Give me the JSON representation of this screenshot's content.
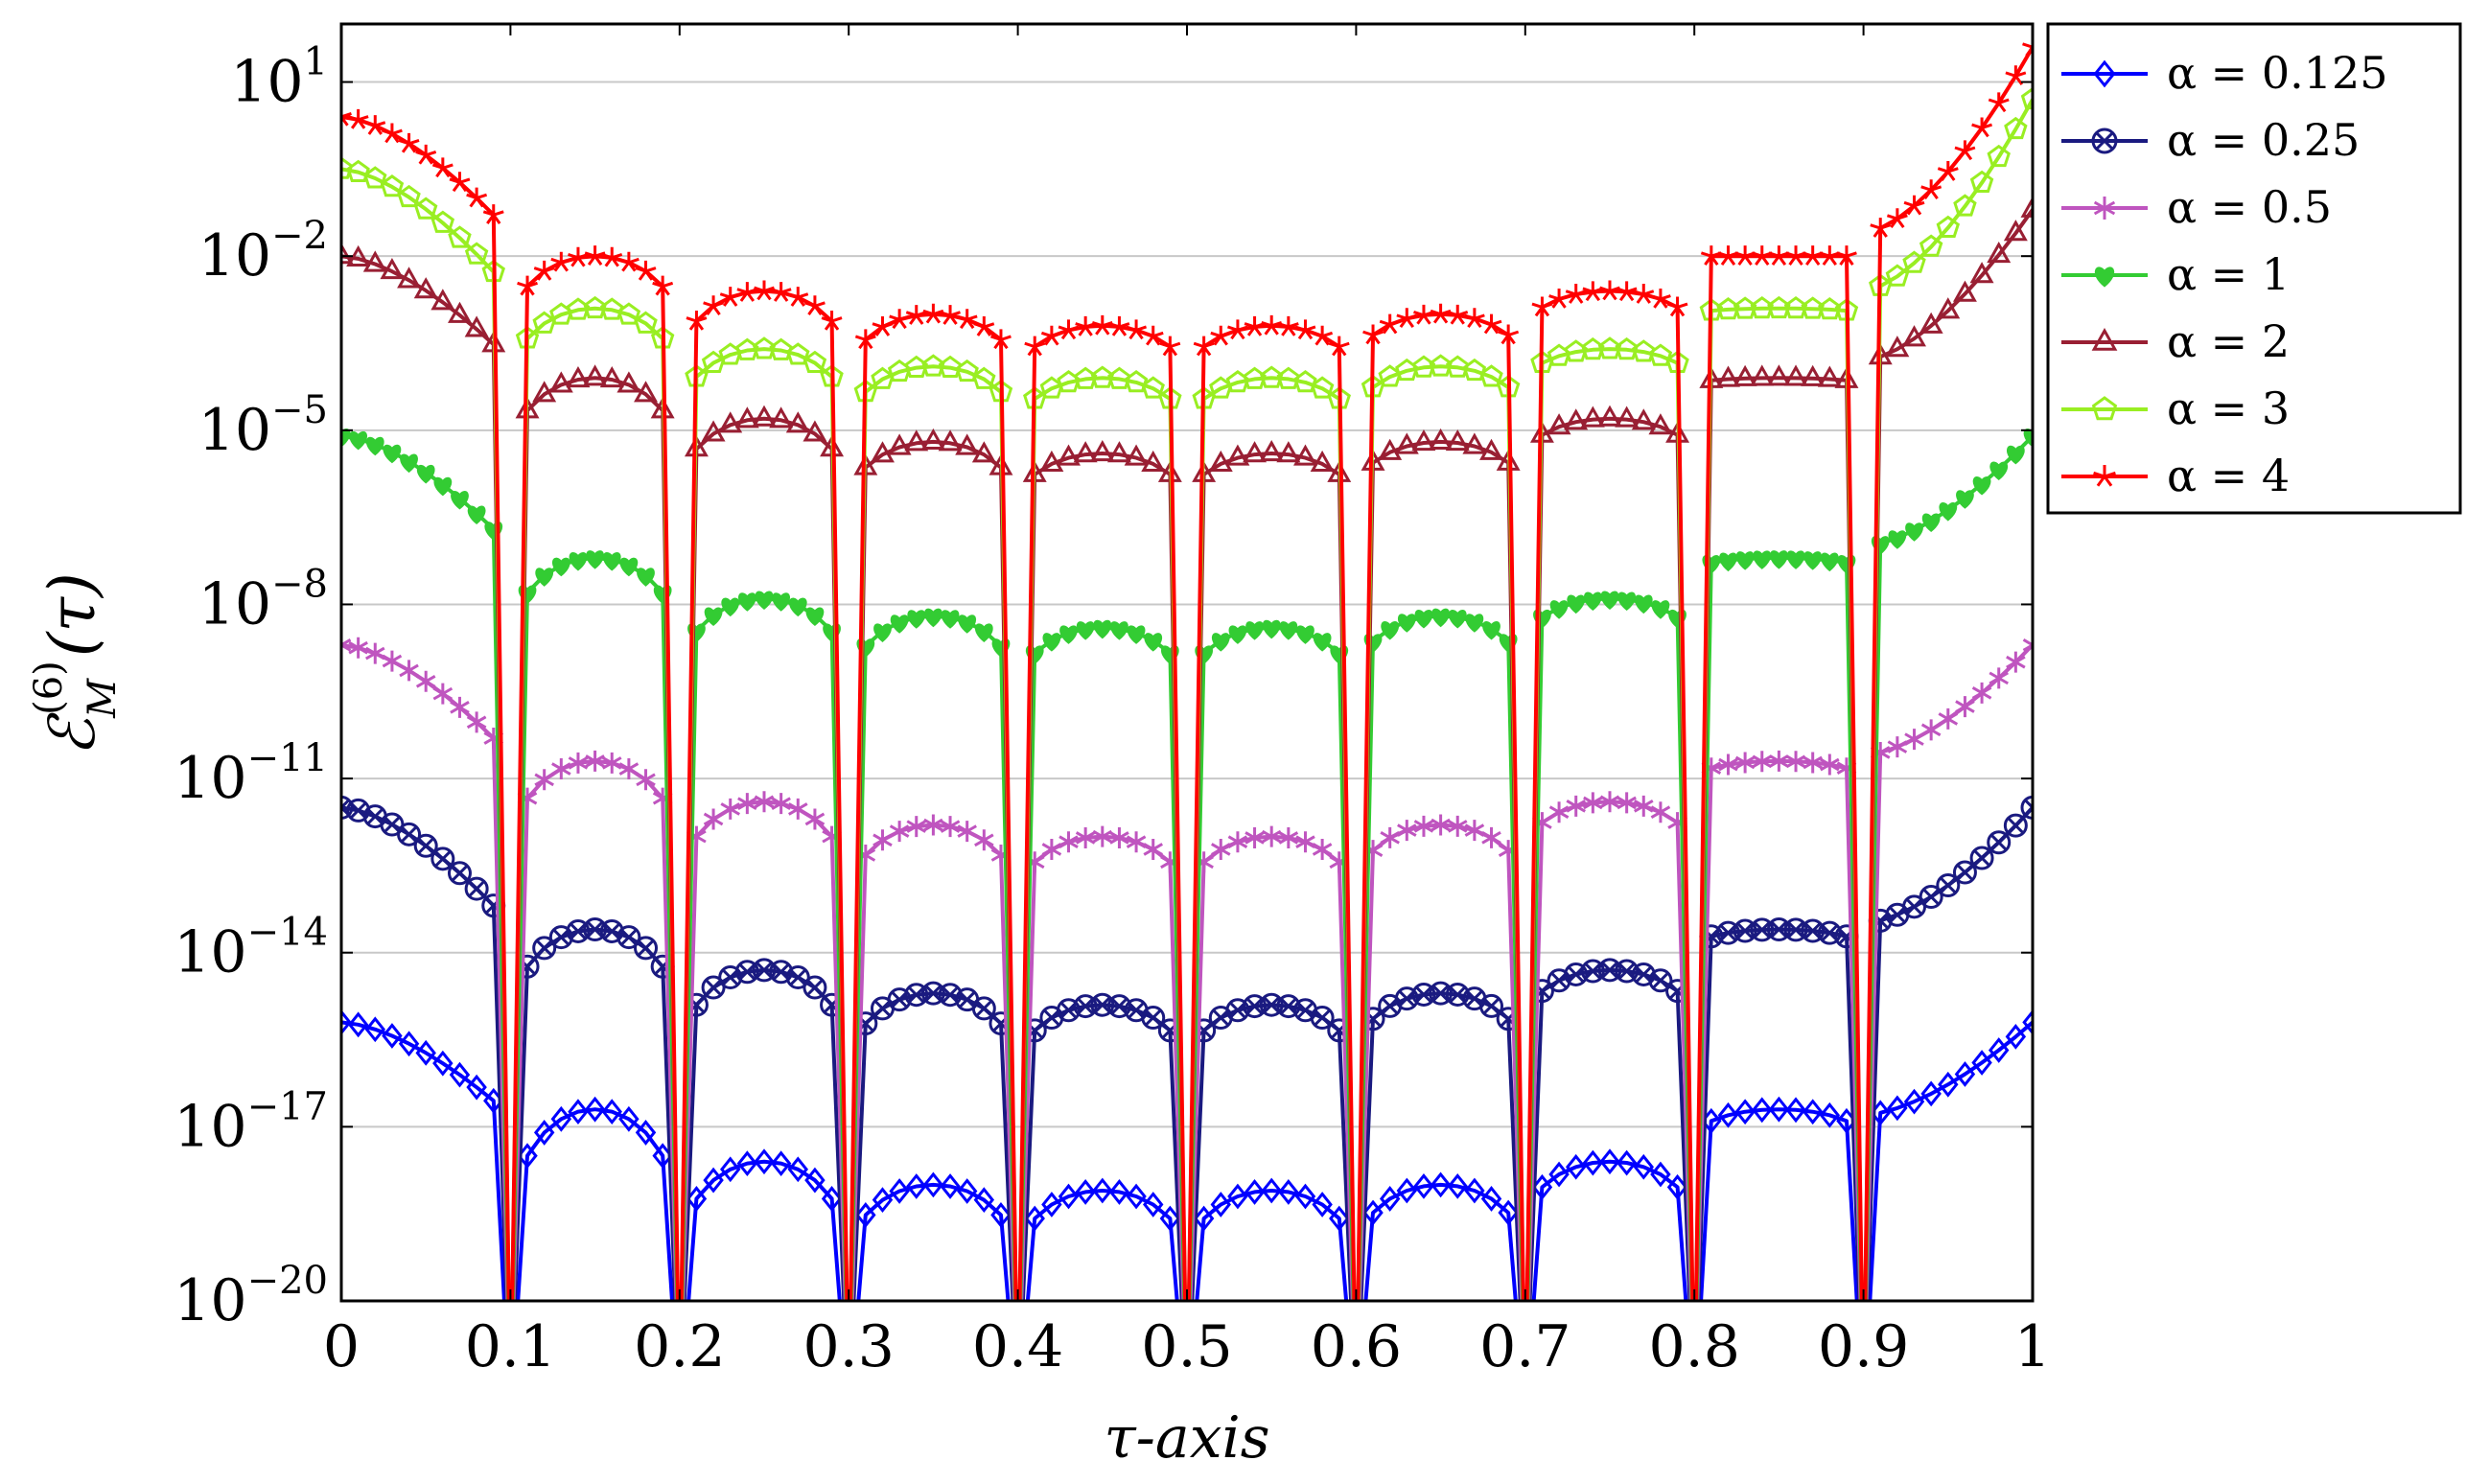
{
  "chart_data": {
    "type": "line",
    "xlabel": "τ-axis",
    "ylabel": "ℰ_M^(6)(τ)",
    "ylabel_parts": {
      "base": "ℰ",
      "sub": "M",
      "sup": "(6)",
      "arg": "(τ)"
    },
    "xlim": [
      0,
      1
    ],
    "ylim_exp": [
      -20,
      2
    ],
    "yscale": "log",
    "grid": "horizontal major",
    "legend_position": "outside top-right",
    "x_ticks": [
      "0",
      "0.1",
      "0.2",
      "0.3",
      "0.4",
      "0.5",
      "0.6",
      "0.7",
      "0.8",
      "0.9",
      "1"
    ],
    "y_ticks": [
      {
        "base": "10",
        "exp": "−20"
      },
      {
        "base": "10",
        "exp": "−17"
      },
      {
        "base": "10",
        "exp": "−14"
      },
      {
        "base": "10",
        "exp": "−11"
      },
      {
        "base": "10",
        "exp": "−8"
      },
      {
        "base": "10",
        "exp": "−5"
      },
      {
        "base": "10",
        "exp": "−2"
      },
      {
        "base": "10",
        "exp": "1"
      }
    ],
    "x": [
      0,
      0.1,
      0.2,
      0.3,
      0.4,
      0.5,
      0.6,
      0.7,
      0.8,
      0.9,
      1
    ],
    "series": [
      {
        "name": "α = 0.125",
        "color": "#0000ff",
        "marker": "diamond",
        "log10_endpoint_values": [
          -15.2,
          -16.8,
          -18.3,
          -18.8,
          -18.9,
          -18.9,
          -18.8,
          -18.3,
          -16.8,
          -15.2
        ],
        "log10_arc_peaks": [
          -16.7,
          -17.6,
          -18.0,
          -18.1,
          -18.1,
          -18.0,
          -17.6,
          -16.7
        ]
      },
      {
        "name": "α = 0.25",
        "color": "#1a1a80",
        "marker": "circle-x",
        "log10_endpoint_values": [
          -11.5,
          -13.5,
          -14.8,
          -15.4,
          -15.6,
          -15.6,
          -15.4,
          -14.8,
          -13.5,
          -11.5
        ],
        "log10_arc_peaks": [
          -13.6,
          -14.3,
          -14.7,
          -14.9,
          -14.9,
          -14.7,
          -14.3,
          -13.6
        ]
      },
      {
        "name": "α = 0.5",
        "color": "#bf55bf",
        "marker": "asterisk",
        "log10_endpoint_values": [
          -8.7,
          -10.6,
          -11.9,
          -12.5,
          -12.7,
          -12.7,
          -12.5,
          -11.9,
          -10.6,
          -8.7
        ],
        "log10_arc_peaks": [
          -10.7,
          -11.4,
          -11.8,
          -12.0,
          -12.0,
          -11.8,
          -11.4,
          -10.7
        ]
      },
      {
        "name": "α = 1",
        "color": "#33cc33",
        "marker": "filled-heart",
        "log10_endpoint_values": [
          -5.1,
          -7.0,
          -8.3,
          -8.9,
          -9.1,
          -9.1,
          -8.9,
          -8.3,
          -7.0,
          -5.1
        ],
        "log10_arc_peaks": [
          -7.2,
          -7.9,
          -8.2,
          -8.4,
          -8.4,
          -8.2,
          -7.9,
          -7.2
        ]
      },
      {
        "name": "α = 2",
        "color": "#991f33",
        "marker": "triangle",
        "log10_endpoint_values": [
          -2.0,
          -3.8,
          -5.1,
          -5.7,
          -5.9,
          -5.9,
          -5.7,
          -5.1,
          -3.8,
          -1.2
        ],
        "log10_arc_peaks": [
          -4.1,
          -4.8,
          -5.2,
          -5.4,
          -5.4,
          -5.2,
          -4.8,
          -4.1
        ]
      },
      {
        "name": "α = 3",
        "color": "#99ee22",
        "marker": "pentagon",
        "log10_endpoint_values": [
          -0.5,
          -2.6,
          -3.8,
          -4.4,
          -4.6,
          -4.6,
          -4.4,
          -3.8,
          -2.6,
          0.7
        ],
        "log10_arc_peaks": [
          -2.9,
          -3.6,
          -3.9,
          -4.1,
          -4.1,
          -3.9,
          -3.6,
          -2.9
        ]
      },
      {
        "name": "α = 4",
        "color": "#ff0000",
        "marker": "star",
        "log10_endpoint_values": [
          0.4,
          -1.6,
          -2.9,
          -3.5,
          -3.7,
          -3.7,
          -3.5,
          -2.9,
          -1.6,
          1.6
        ],
        "log10_arc_peaks": [
          -2.0,
          -2.6,
          -3.0,
          -3.2,
          -3.2,
          -3.0,
          -2.6,
          -2.0
        ]
      }
    ]
  }
}
